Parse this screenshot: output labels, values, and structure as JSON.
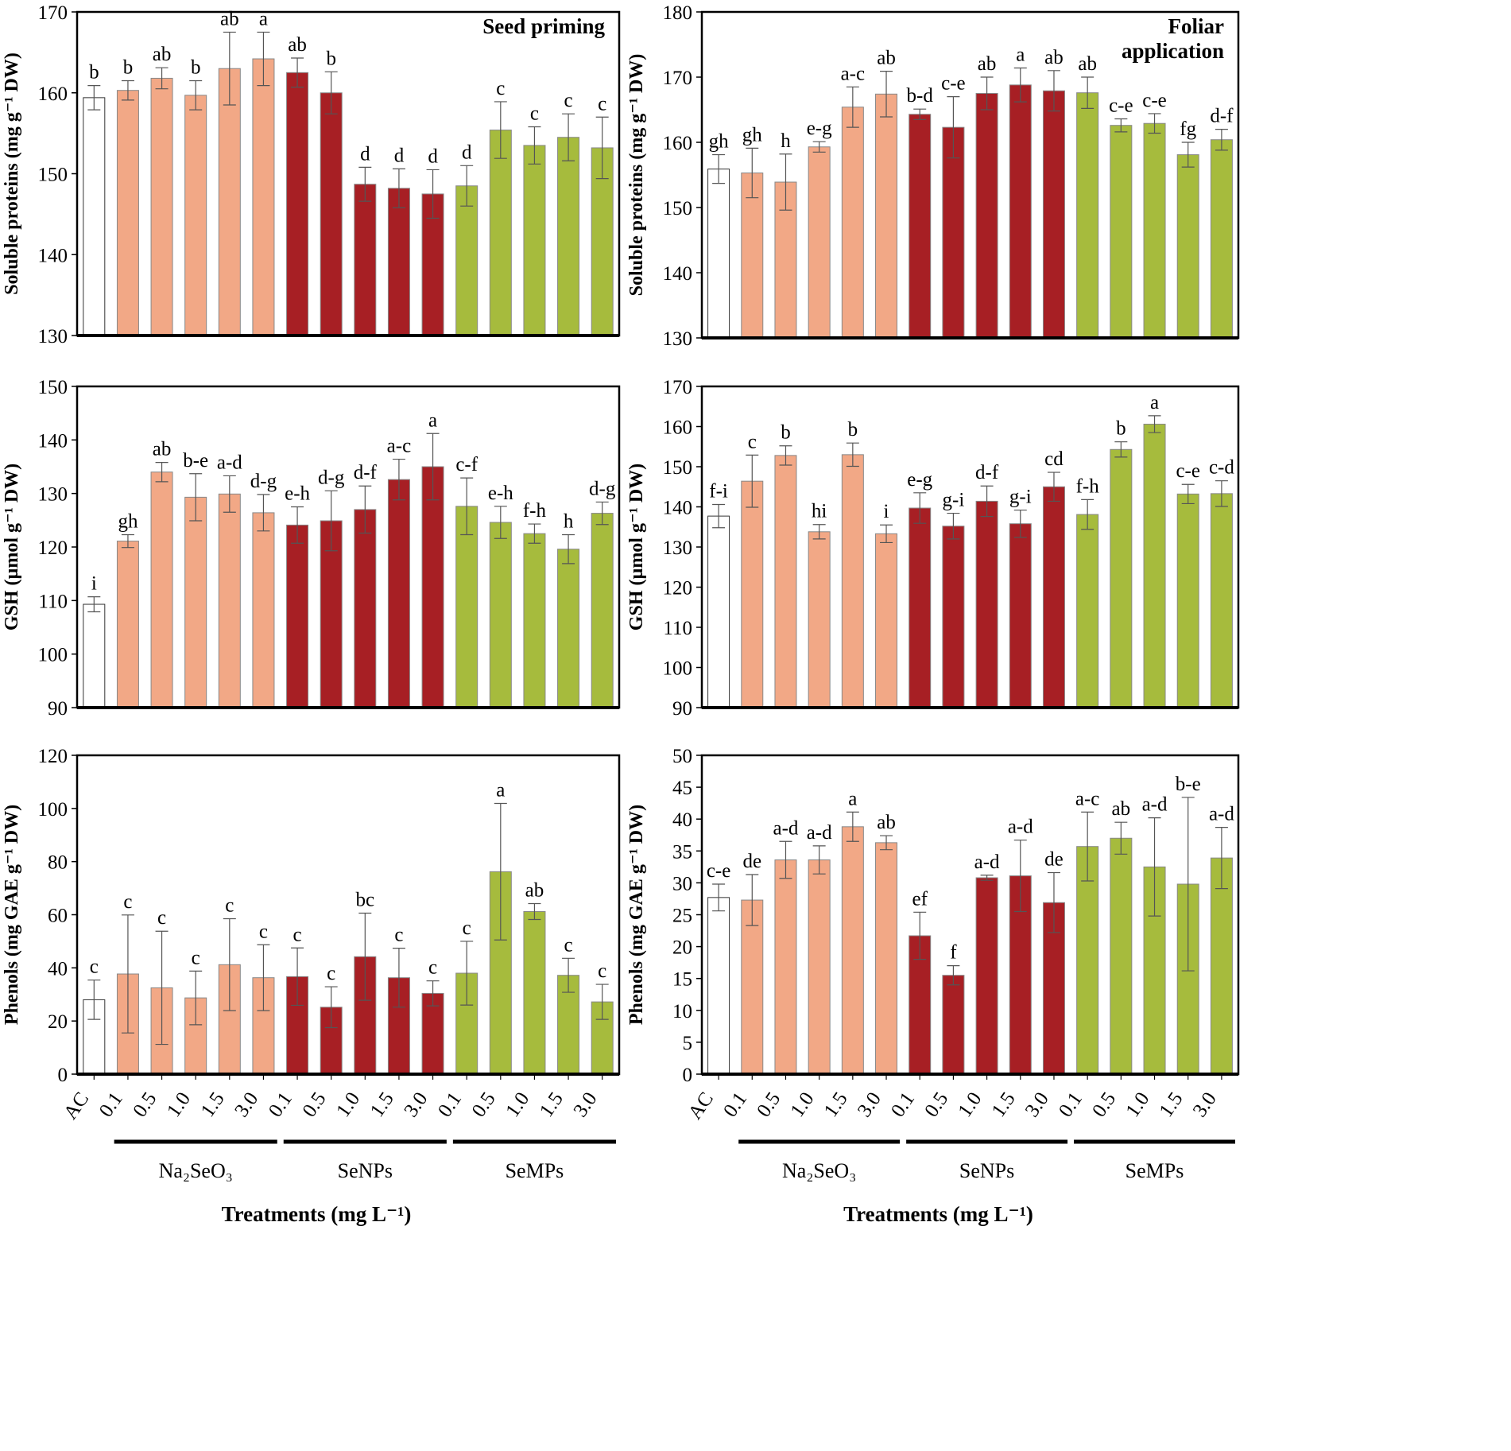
{
  "colors": {
    "control": "#ffffff",
    "na2seo3": "#f2a886",
    "senps": "#a71f24",
    "semps": "#a6bb3d",
    "axis": "#000000",
    "error": "#555555"
  },
  "x_tick_labels": [
    "AC",
    "0.1",
    "0.5",
    "1.0",
    "1.5",
    "3.0",
    "0.1",
    "0.5",
    "1.0",
    "1.5",
    "3.0",
    "0.1",
    "0.5",
    "1.0",
    "1.5",
    "3.0"
  ],
  "x_group_labels": [
    "Na₂SeO₃",
    "SeNPs",
    "SeMPs"
  ],
  "x_title": "Treatments (mg L⁻¹)",
  "chart_data": [
    {
      "type": "bar",
      "panel": "seed-soluble-proteins",
      "title": "Seed priming",
      "title_lines": [
        "Seed priming"
      ],
      "ylabel": "Soluble proteins (mg g⁻¹ DW)",
      "ylim": [
        130,
        170
      ],
      "yticks": [
        130,
        140,
        150,
        160,
        170
      ],
      "categories": [
        "AC",
        "Na2SeO3 0.1",
        "Na2SeO3 0.5",
        "Na2SeO3 1.0",
        "Na2SeO3 1.5",
        "Na2SeO3 3.0",
        "SeNPs 0.1",
        "SeNPs 0.5",
        "SeNPs 1.0",
        "SeNPs 1.5",
        "SeNPs 3.0",
        "SeMPs 0.1",
        "SeMPs 0.5",
        "SeMPs 1.0",
        "SeMPs 1.5",
        "SeMPs 3.0"
      ],
      "values": [
        159.4,
        160.3,
        161.8,
        159.7,
        163.0,
        164.2,
        162.5,
        160.0,
        148.7,
        148.2,
        147.5,
        148.5,
        155.4,
        153.5,
        154.5,
        153.2
      ],
      "errors": [
        1.5,
        1.2,
        1.3,
        1.8,
        4.5,
        3.3,
        1.8,
        2.6,
        2.1,
        2.4,
        3.0,
        2.5,
        3.5,
        2.3,
        2.9,
        3.8
      ],
      "letters": [
        "b",
        "b",
        "ab",
        "b",
        "ab",
        "a",
        "ab",
        "b",
        "d",
        "d",
        "d",
        "d",
        "c",
        "c",
        "c",
        "c"
      ]
    },
    {
      "type": "bar",
      "panel": "foliar-soluble-proteins",
      "title": "Foliar application",
      "title_lines": [
        "Foliar",
        "application"
      ],
      "ylabel": "Soluble proteins (mg g⁻¹ DW)",
      "ylim": [
        130,
        180
      ],
      "yticks": [
        130,
        140,
        150,
        160,
        170,
        180
      ],
      "categories": [
        "AC",
        "Na2SeO3 0.1",
        "Na2SeO3 0.5",
        "Na2SeO3 1.0",
        "Na2SeO3 1.5",
        "Na2SeO3 3.0",
        "SeNPs 0.1",
        "SeNPs 0.5",
        "SeNPs 1.0",
        "SeNPs 1.5",
        "SeNPs 3.0",
        "SeMPs 0.1",
        "SeMPs 0.5",
        "SeMPs 1.0",
        "SeMPs 1.5",
        "SeMPs 3.0"
      ],
      "values": [
        155.9,
        155.3,
        153.9,
        159.3,
        165.4,
        167.4,
        164.3,
        162.3,
        167.5,
        168.8,
        167.9,
        167.6,
        162.6,
        162.9,
        158.1,
        160.4
      ],
      "errors": [
        2.2,
        3.8,
        4.3,
        0.8,
        3.1,
        3.5,
        0.8,
        4.7,
        2.5,
        2.6,
        3.1,
        2.4,
        1.0,
        1.5,
        1.9,
        1.6
      ],
      "letters": [
        "gh",
        "gh",
        "h",
        "e-g",
        "a-c",
        "ab",
        "b-d",
        "c-e",
        "ab",
        "a",
        "ab",
        "ab",
        "c-e",
        "c-e",
        "fg",
        "d-f"
      ]
    },
    {
      "type": "bar",
      "panel": "seed-gsh",
      "title": "",
      "title_lines": [],
      "ylabel": "GSH (µmol g⁻¹ DW)",
      "ylim": [
        90,
        150
      ],
      "yticks": [
        90,
        100,
        110,
        120,
        130,
        140,
        150
      ],
      "categories": [
        "AC",
        "Na2SeO3 0.1",
        "Na2SeO3 0.5",
        "Na2SeO3 1.0",
        "Na2SeO3 1.5",
        "Na2SeO3 3.0",
        "SeNPs 0.1",
        "SeNPs 0.5",
        "SeNPs 1.0",
        "SeNPs 1.5",
        "SeNPs 3.0",
        "SeMPs 0.1",
        "SeMPs 0.5",
        "SeMPs 1.0",
        "SeMPs 1.5",
        "SeMPs 3.0"
      ],
      "values": [
        109.3,
        121.1,
        134.0,
        129.3,
        129.9,
        126.4,
        124.1,
        124.9,
        127.0,
        132.6,
        135.0,
        127.6,
        124.6,
        122.5,
        119.6,
        126.3
      ],
      "errors": [
        1.4,
        1.2,
        1.8,
        4.4,
        3.4,
        3.4,
        3.4,
        5.6,
        4.4,
        3.8,
        6.2,
        5.3,
        3.0,
        1.8,
        2.7,
        2.1
      ],
      "letters": [
        "i",
        "gh",
        "ab",
        "b-e",
        "a-d",
        "d-g",
        "e-h",
        "d-g",
        "d-f",
        "a-c",
        "a",
        "c-f",
        "e-h",
        "f-h",
        "h",
        "d-g"
      ]
    },
    {
      "type": "bar",
      "panel": "foliar-gsh",
      "title": "",
      "title_lines": [],
      "ylabel": "GSH (µmol g⁻¹ DW)",
      "ylim": [
        90,
        170
      ],
      "yticks": [
        90,
        100,
        110,
        120,
        130,
        140,
        150,
        160,
        170
      ],
      "categories": [
        "AC",
        "Na2SeO3 0.1",
        "Na2SeO3 0.5",
        "Na2SeO3 1.0",
        "Na2SeO3 1.5",
        "Na2SeO3 3.0",
        "SeNPs 0.1",
        "SeNPs 0.5",
        "SeNPs 1.0",
        "SeNPs 1.5",
        "SeNPs 3.0",
        "SeMPs 0.1",
        "SeMPs 0.5",
        "SeMPs 1.0",
        "SeMPs 1.5",
        "SeMPs 3.0"
      ],
      "values": [
        137.7,
        146.4,
        152.8,
        133.8,
        153.0,
        133.3,
        139.7,
        135.2,
        141.4,
        135.8,
        145.0,
        138.1,
        154.3,
        160.6,
        143.2,
        143.3
      ],
      "errors": [
        2.9,
        6.5,
        2.4,
        1.8,
        2.9,
        2.2,
        3.8,
        3.2,
        3.8,
        3.4,
        3.6,
        3.7,
        1.9,
        2.1,
        2.4,
        3.2
      ],
      "letters": [
        "f-i",
        "c",
        "b",
        "hi",
        "b",
        "i",
        "e-g",
        "g-i",
        "d-f",
        "g-i",
        "cd",
        "f-h",
        "b",
        "a",
        "c-e",
        "c-d"
      ]
    },
    {
      "type": "bar",
      "panel": "seed-phenols",
      "title": "",
      "title_lines": [],
      "ylabel": "Phenols (mg GAE g⁻¹ DW)",
      "ylim": [
        0,
        120
      ],
      "yticks": [
        0,
        20,
        40,
        60,
        80,
        100,
        120
      ],
      "categories": [
        "AC",
        "Na2SeO3 0.1",
        "Na2SeO3 0.5",
        "Na2SeO3 1.0",
        "Na2SeO3 1.5",
        "Na2SeO3 3.0",
        "SeNPs 0.1",
        "SeNPs 0.5",
        "SeNPs 1.0",
        "SeNPs 1.5",
        "SeNPs 3.0",
        "SeMPs 0.1",
        "SeMPs 0.5",
        "SeMPs 1.0",
        "SeMPs 1.5",
        "SeMPs 3.0"
      ],
      "values": [
        28.0,
        37.7,
        32.5,
        28.7,
        41.2,
        36.3,
        36.7,
        25.2,
        44.2,
        36.3,
        30.4,
        38.0,
        76.2,
        61.2,
        37.2,
        27.2
      ],
      "errors": [
        7.4,
        22.2,
        21.3,
        10.1,
        17.3,
        12.4,
        10.8,
        7.7,
        16.4,
        11.1,
        4.7,
        12.0,
        25.7,
        3.0,
        6.4,
        6.6
      ],
      "letters": [
        "c",
        "c",
        "c",
        "c",
        "c",
        "c",
        "c",
        "c",
        "bc",
        "c",
        "c",
        "c",
        "a",
        "ab",
        "c",
        "c"
      ]
    },
    {
      "type": "bar",
      "panel": "foliar-phenols",
      "title": "",
      "title_lines": [],
      "ylabel": "Phenols (mg GAE g⁻¹ DW)",
      "ylim": [
        0,
        50
      ],
      "yticks": [
        0,
        5,
        10,
        15,
        20,
        25,
        30,
        35,
        40,
        45,
        50
      ],
      "categories": [
        "AC",
        "Na2SeO3 0.1",
        "Na2SeO3 0.5",
        "Na2SeO3 1.0",
        "Na2SeO3 1.5",
        "Na2SeO3 3.0",
        "SeNPs 0.1",
        "SeNPs 0.5",
        "SeNPs 1.0",
        "SeNPs 1.5",
        "SeNPs 3.0",
        "SeMPs 0.1",
        "SeMPs 0.5",
        "SeMPs 1.0",
        "SeMPs 1.5",
        "SeMPs 3.0"
      ],
      "values": [
        27.7,
        27.3,
        33.6,
        33.6,
        38.8,
        36.3,
        21.7,
        15.5,
        30.8,
        31.1,
        26.9,
        35.7,
        37.0,
        32.5,
        29.8,
        33.9
      ],
      "errors": [
        2.1,
        4.0,
        2.9,
        2.2,
        2.3,
        1.1,
        3.7,
        1.5,
        0.4,
        5.6,
        4.7,
        5.4,
        2.5,
        7.7,
        13.6,
        4.8
      ],
      "letters": [
        "c-e",
        "de",
        "a-d",
        "a-d",
        "a",
        "ab",
        "ef",
        "f",
        "a-d",
        "a-d",
        "de",
        "a-c",
        "ab",
        "a-d",
        "b-e",
        "a-d"
      ]
    }
  ]
}
